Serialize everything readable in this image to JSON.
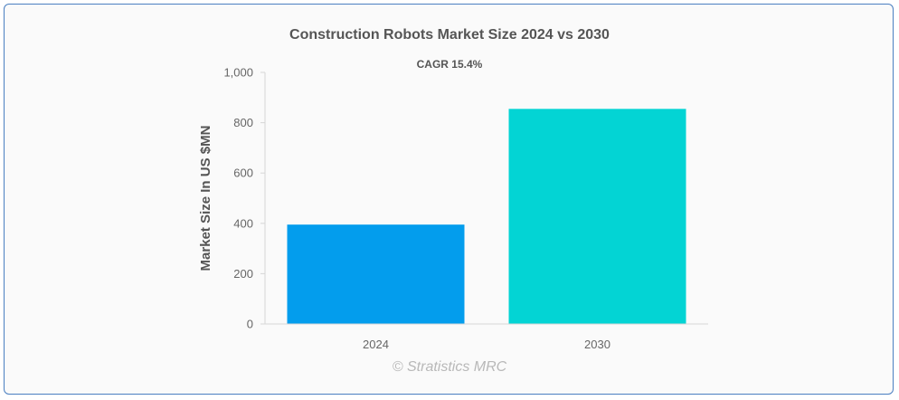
{
  "chart_data": {
    "type": "bar",
    "title": "Construction Robots Market Size 2024 vs 2030",
    "subtitle": "CAGR 15.4%",
    "categories": [
      "2024",
      "2030"
    ],
    "values": [
      395,
      855
    ],
    "colors": [
      "#039ded",
      "#03d4d4"
    ],
    "xlabel": "",
    "ylabel": "Market Size In US $MN",
    "ylim": [
      0,
      1000
    ],
    "yticks": [
      0,
      200,
      400,
      600,
      800,
      1000
    ],
    "ytick_labels": [
      "0",
      "200",
      "400",
      "600",
      "800",
      "1,000"
    ],
    "grid": false,
    "legend": "none"
  },
  "watermark": "© Stratistics MRC"
}
